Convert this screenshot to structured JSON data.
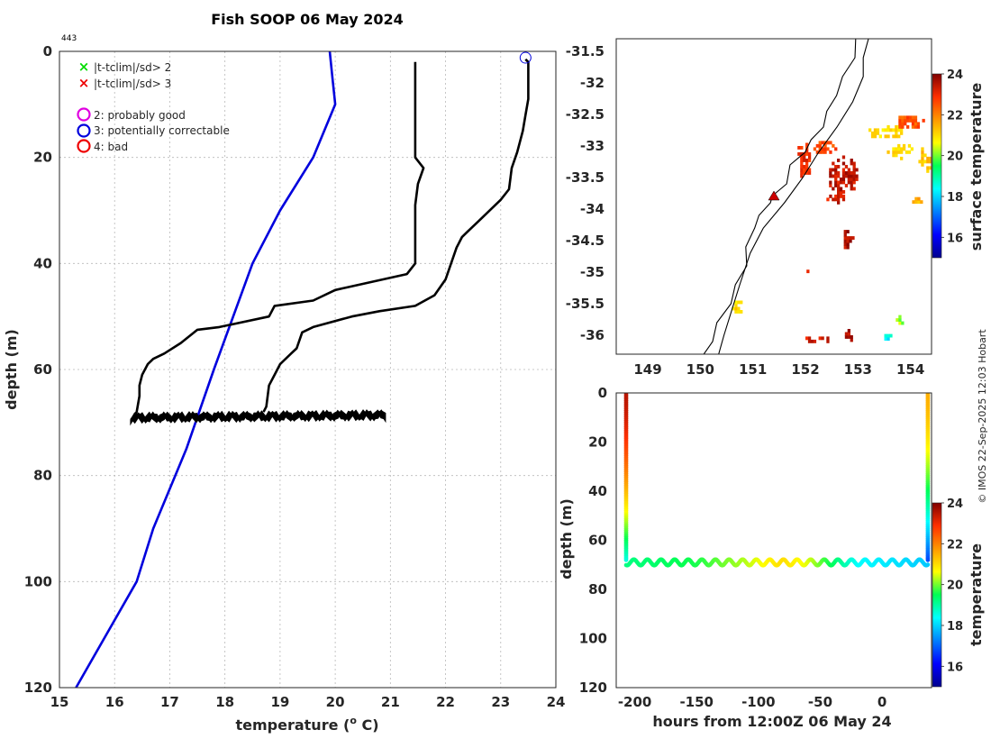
{
  "title": "Fish SOOP 06 May 2024",
  "profile_count": "443",
  "copyright": "© IMOS 22-Sep-2025 12:03 Hobart",
  "legend": {
    "flag_items": [
      "|t-tclim|/sd> 2",
      "|t-tclim|/sd> 3"
    ],
    "qc_items": [
      "2: probably good",
      "3: potentially correctable",
      "4: bad"
    ],
    "colors": {
      "sd2": "#00dd00",
      "sd3": "#ee0000",
      "qc2": "#e000e0",
      "qc3": "#0000dd",
      "qc4": "#ee0000"
    }
  },
  "chart_data": [
    {
      "id": "profile",
      "type": "line",
      "title": "Fish SOOP 06 May 2024",
      "xlabel": "temperature (",
      "xlabel_sup": "o",
      "xlabel_end": " C)",
      "ylabel": "depth (m)",
      "xlim": [
        15,
        24
      ],
      "ylim": [
        0,
        120
      ],
      "y_reversed": true,
      "xticks": [
        15,
        16,
        17,
        18,
        19,
        20,
        21,
        22,
        23,
        24
      ],
      "yticks": [
        0,
        20,
        40,
        60,
        80,
        100,
        120
      ],
      "series": [
        {
          "name": "climatology",
          "color": "#0000dd",
          "points": [
            [
              19.9,
              0
            ],
            [
              19.95,
              5
            ],
            [
              20.0,
              10
            ],
            [
              19.6,
              20
            ],
            [
              19.0,
              30
            ],
            [
              18.5,
              40
            ],
            [
              17.8,
              60
            ],
            [
              17.3,
              75
            ],
            [
              16.7,
              90
            ],
            [
              16.4,
              100
            ],
            [
              15.3,
              120
            ]
          ]
        },
        {
          "name": "profile_min",
          "color": "#000000",
          "points": [
            [
              21.45,
              2
            ],
            [
              21.45,
              20
            ],
            [
              21.6,
              22
            ],
            [
              21.5,
              25
            ],
            [
              21.45,
              29
            ],
            [
              21.45,
              40
            ],
            [
              21.3,
              42
            ],
            [
              20.0,
              45
            ],
            [
              19.6,
              47
            ],
            [
              18.9,
              48
            ],
            [
              18.8,
              50
            ],
            [
              17.9,
              52
            ],
            [
              17.5,
              52.5
            ],
            [
              17.2,
              55
            ],
            [
              16.9,
              57
            ],
            [
              16.7,
              58
            ],
            [
              16.6,
              59
            ],
            [
              16.5,
              61
            ],
            [
              16.45,
              63
            ],
            [
              16.45,
              65
            ],
            [
              16.4,
              68
            ],
            [
              16.3,
              69.5
            ]
          ]
        },
        {
          "name": "profile_max",
          "color": "#000000",
          "points": [
            [
              23.45,
              1.5
            ],
            [
              23.5,
              2
            ],
            [
              23.5,
              9
            ],
            [
              23.45,
              12
            ],
            [
              23.4,
              15
            ],
            [
              23.3,
              19
            ],
            [
              23.2,
              22
            ],
            [
              23.15,
              26
            ],
            [
              23.0,
              28
            ],
            [
              22.7,
              31
            ],
            [
              22.6,
              32
            ],
            [
              22.4,
              34
            ],
            [
              22.3,
              35
            ],
            [
              22.2,
              37
            ],
            [
              22.1,
              40
            ],
            [
              22.0,
              43
            ],
            [
              21.8,
              46
            ],
            [
              21.45,
              48
            ],
            [
              20.8,
              49
            ],
            [
              20.3,
              50
            ],
            [
              19.6,
              52
            ],
            [
              19.4,
              53
            ],
            [
              19.3,
              56
            ],
            [
              19.2,
              57
            ],
            [
              19.0,
              59
            ],
            [
              18.9,
              61
            ],
            [
              18.8,
              63
            ],
            [
              18.75,
              67
            ],
            [
              18.7,
              68
            ]
          ]
        },
        {
          "name": "bottom_band",
          "color": "#000000",
          "band": {
            "x_min": 16.3,
            "x_max": 20.9,
            "y_min": 68.2,
            "y_max": 70.0
          }
        }
      ],
      "markers": [
        {
          "x": 23.45,
          "y": 1.2,
          "qc": 3
        }
      ]
    },
    {
      "id": "map",
      "type": "heatmap",
      "xlim": [
        148.4,
        154.4
      ],
      "ylim": [
        -36.3,
        -31.3
      ],
      "xticks": [
        149,
        150,
        151,
        152,
        153,
        154
      ],
      "yticks": [
        -31.5,
        -32,
        -32.5,
        -33,
        -33.5,
        -34,
        -34.5,
        -35,
        -35.5,
        -36
      ],
      "colorbar": {
        "label": "surface temperature",
        "range": [
          15,
          24
        ],
        "ticks": [
          16,
          18,
          20,
          22,
          24
        ]
      },
      "coastline": [
        [
          151.4,
          -33.8
        ],
        [
          151.3,
          -33.9
        ],
        [
          151.15,
          -34.1
        ],
        [
          151.0,
          -34.3
        ],
        [
          150.9,
          -34.6
        ],
        [
          150.85,
          -34.9
        ],
        [
          150.7,
          -35.2
        ],
        [
          150.55,
          -35.5
        ],
        [
          150.35,
          -35.8
        ],
        [
          150.2,
          -36.1
        ],
        [
          150.1,
          -36.3
        ]
      ],
      "coastline_north": [
        [
          151.4,
          -33.8
        ],
        [
          151.6,
          -33.6
        ],
        [
          151.75,
          -33.3
        ],
        [
          151.95,
          -33.1
        ],
        [
          152.15,
          -32.9
        ],
        [
          152.3,
          -32.7
        ],
        [
          152.45,
          -32.45
        ],
        [
          152.55,
          -32.2
        ],
        [
          152.75,
          -31.9
        ],
        [
          152.9,
          -31.6
        ],
        [
          153.0,
          -31.3
        ]
      ],
      "shelf_edge": [
        [
          153.2,
          -31.3
        ],
        [
          153.1,
          -31.6
        ],
        [
          153.1,
          -31.9
        ],
        [
          152.9,
          -32.3
        ],
        [
          152.6,
          -32.7
        ],
        [
          152.25,
          -33.1
        ],
        [
          151.95,
          -33.5
        ],
        [
          151.6,
          -33.9
        ],
        [
          151.2,
          -34.3
        ],
        [
          150.95,
          -34.7
        ],
        [
          150.75,
          -35.2
        ],
        [
          150.6,
          -35.6
        ],
        [
          150.45,
          -36.0
        ],
        [
          150.35,
          -36.3
        ]
      ],
      "sst_patches": [
        {
          "lon": 152.35,
          "lat": -33.05,
          "rx": 0.25,
          "ry": 0.12,
          "t": 22.6
        },
        {
          "lon": 151.95,
          "lat": -33.25,
          "rx": 0.15,
          "ry": 0.3,
          "t": 23.0
        },
        {
          "lon": 152.7,
          "lat": -33.5,
          "rx": 0.3,
          "ry": 0.3,
          "t": 23.4
        },
        {
          "lon": 152.55,
          "lat": -33.85,
          "rx": 0.2,
          "ry": 0.12,
          "t": 23.3
        },
        {
          "lon": 152.8,
          "lat": -34.5,
          "rx": 0.12,
          "ry": 0.18,
          "t": 23.6
        },
        {
          "lon": 153.5,
          "lat": -32.8,
          "rx": 0.35,
          "ry": 0.12,
          "t": 21.0
        },
        {
          "lon": 153.8,
          "lat": -33.1,
          "rx": 0.3,
          "ry": 0.12,
          "t": 21.0
        },
        {
          "lon": 153.95,
          "lat": -32.65,
          "rx": 0.28,
          "ry": 0.12,
          "t": 22.5
        },
        {
          "lon": 154.25,
          "lat": -33.25,
          "rx": 0.15,
          "ry": 0.22,
          "t": 21.2
        },
        {
          "lon": 154.1,
          "lat": -33.9,
          "rx": 0.12,
          "ry": 0.06,
          "t": 21.4
        },
        {
          "lon": 150.7,
          "lat": -35.6,
          "rx": 0.1,
          "ry": 0.15,
          "t": 21.0
        },
        {
          "lon": 152.25,
          "lat": -36.1,
          "rx": 0.3,
          "ry": 0.07,
          "t": 23.3
        },
        {
          "lon": 152.8,
          "lat": -36.05,
          "rx": 0.1,
          "ry": 0.1,
          "t": 23.5
        },
        {
          "lon": 153.55,
          "lat": -36.05,
          "rx": 0.1,
          "ry": 0.08,
          "t": 18.4
        },
        {
          "lon": 153.75,
          "lat": -35.8,
          "rx": 0.08,
          "ry": 0.08,
          "t": 20.2
        },
        {
          "lon": 152.0,
          "lat": -35.0,
          "rx": 0.08,
          "ry": 0.06,
          "t": 23.2
        }
      ],
      "track_marker": {
        "lon": 151.4,
        "lat": -33.8,
        "color": "#cc0000"
      }
    },
    {
      "id": "time_depth",
      "type": "scatter",
      "xlabel": "hours from 12:00Z 06 May 24",
      "ylabel": "depth (m)",
      "xlim": [
        -215,
        40
      ],
      "ylim": [
        0,
        120
      ],
      "y_reversed": true,
      "xticks": [
        -200,
        -150,
        -100,
        -50,
        0
      ],
      "yticks": [
        0,
        20,
        40,
        60,
        80,
        100,
        120
      ],
      "colorbar": {
        "label": "temperature",
        "range": [
          15,
          24
        ],
        "ticks": [
          16,
          18,
          20,
          22,
          24
        ]
      },
      "descent": {
        "hour": -207,
        "depth_range": [
          0,
          68
        ],
        "temp_top": 23.5,
        "temp_bottom": 18.6
      },
      "ascent": {
        "hour": 37,
        "depth_range": [
          0,
          68
        ],
        "temp_top": 21.5,
        "temp_bottom": 16.8
      },
      "bottom_trace": {
        "hour_range": [
          -207,
          37
        ],
        "depth_mean": 69.0,
        "depth_amp": 1.2,
        "period_h": 11,
        "temp_stops": [
          [
            -207,
            19.2
          ],
          [
            -150,
            19.6
          ],
          [
            -110,
            20.3
          ],
          [
            -80,
            21.0
          ],
          [
            -60,
            20.5
          ],
          [
            -20,
            18.4
          ],
          [
            37,
            17.9
          ]
        ]
      }
    }
  ]
}
